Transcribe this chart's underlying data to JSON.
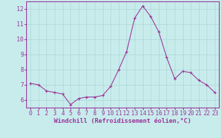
{
  "x": [
    0,
    1,
    2,
    3,
    4,
    5,
    6,
    7,
    8,
    9,
    10,
    11,
    12,
    13,
    14,
    15,
    16,
    17,
    18,
    19,
    20,
    21,
    22,
    23
  ],
  "y": [
    7.1,
    7.0,
    6.6,
    6.5,
    6.4,
    5.7,
    6.1,
    6.2,
    6.2,
    6.3,
    6.9,
    8.0,
    9.2,
    11.4,
    12.2,
    11.5,
    10.5,
    8.8,
    7.4,
    7.9,
    7.8,
    7.3,
    7.0,
    6.5
  ],
  "line_color": "#993399",
  "marker": "+",
  "marker_color": "#993399",
  "marker_size": 3,
  "line_width": 0.8,
  "background_color": "#c8ecec",
  "grid_color": "#b0d8d8",
  "xlabel": "Windchill (Refroidissement éolien,°C)",
  "xlabel_fontsize": 6.5,
  "tick_fontsize": 6,
  "ylim": [
    5.5,
    12.5
  ],
  "xlim": [
    -0.5,
    23.5
  ],
  "yticks": [
    6,
    7,
    8,
    9,
    10,
    11,
    12
  ],
  "xticks": [
    0,
    1,
    2,
    3,
    4,
    5,
    6,
    7,
    8,
    9,
    10,
    11,
    12,
    13,
    14,
    15,
    16,
    17,
    18,
    19,
    20,
    21,
    22,
    23
  ],
  "spine_color": "#993399",
  "tick_color": "#993399",
  "label_color": "#993399"
}
